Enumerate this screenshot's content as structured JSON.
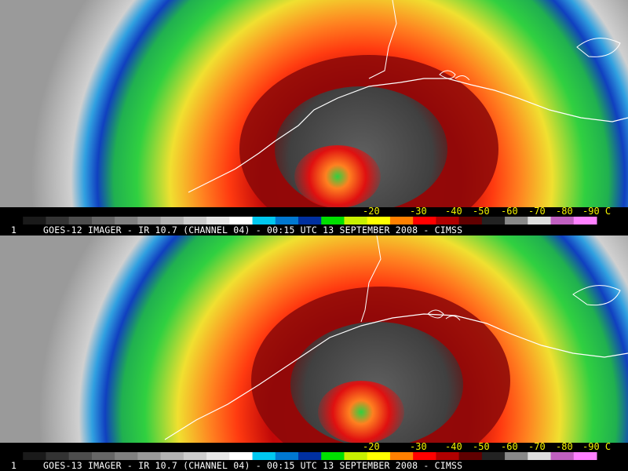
{
  "panels": [
    {
      "id": "goes-12",
      "frame_number": "1",
      "caption": "GOES-12 IMAGER - IR 10.7 (CHANNEL 04) - 00:15 UTC 13 SEPTEMBER 2008 - CIMSS"
    },
    {
      "id": "goes-13",
      "frame_number": "1",
      "caption": "GOES-13 IMAGER - IR 10.7 (CHANNEL 04) - 00:15 UTC 13 SEPTEMBER 2008 - CIMSS"
    }
  ],
  "color_scale": {
    "tick_labels": [
      "-20",
      "-30",
      "-40",
      "-50",
      "-60",
      "-70",
      "-80",
      "-90 C"
    ],
    "label_color": "#f2f200",
    "segments": [
      "#000000",
      "#1a1a1a",
      "#333333",
      "#4d4d4d",
      "#666666",
      "#808080",
      "#999999",
      "#b3b3b3",
      "#cccccc",
      "#e6e6e6",
      "#ffffff",
      "#00c8f0",
      "#0078d0",
      "#0030a0",
      "#00e000",
      "#c8f000",
      "#ffff00",
      "#ff8000",
      "#ff0000",
      "#b00000",
      "#600000",
      "#222222",
      "#888888",
      "#dddddd",
      "#c060c0",
      "#ff80ff"
    ]
  },
  "imagery_colors": {
    "clear_sky": "#b4b4b4",
    "cold_ring_blue": "#1040c0",
    "green": "#30d040",
    "yellow": "#f0e030",
    "orange": "#ff8020",
    "red": "#e01010",
    "dark_red": "#700808",
    "core_gray": "#505050",
    "coastline": "#ffffff"
  }
}
